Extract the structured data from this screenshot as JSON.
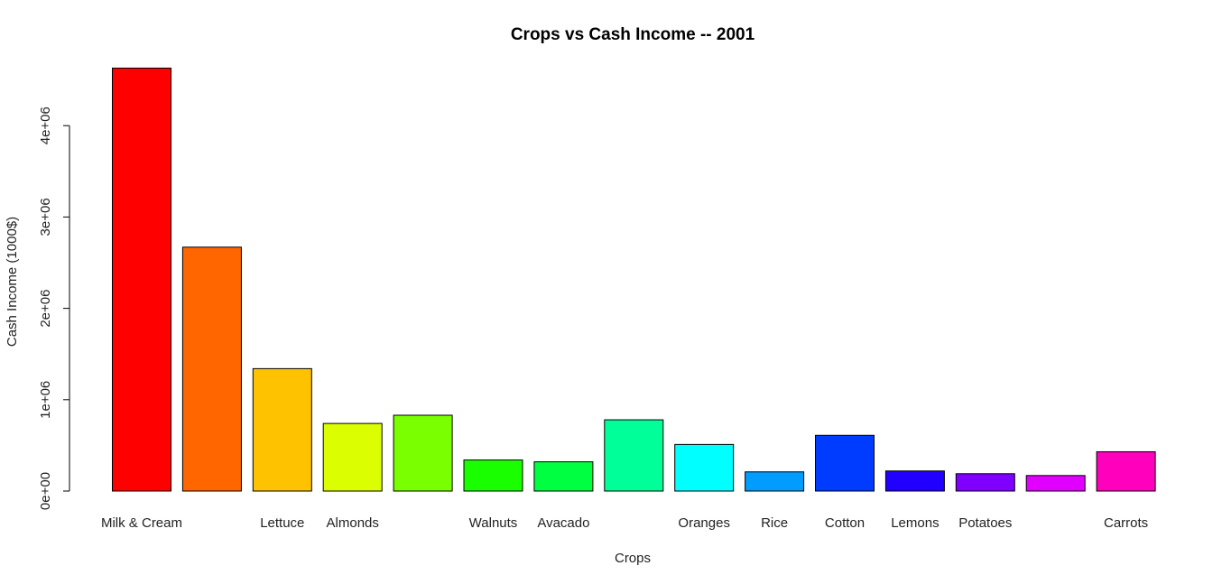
{
  "chart_data": {
    "type": "bar",
    "title": "Crops vs Cash Income -- 2001",
    "xlabel": "Crops",
    "ylabel": "Cash Income (1000$)",
    "ylim": [
      0,
      4600000
    ],
    "yticks": [
      0,
      1000000,
      2000000,
      3000000,
      4000000
    ],
    "ytick_labels": [
      "0e+00",
      "1e+06",
      "2e+06",
      "3e+06",
      "4e+06"
    ],
    "categories": [
      "Milk & Cream",
      "",
      "Lettuce",
      "Almonds",
      "",
      "Walnuts",
      "Avacado",
      "",
      "Oranges",
      "Rice",
      "Cotton",
      "Lemons",
      "Potatoes",
      "",
      "Carrots"
    ],
    "values": [
      4630000,
      2670000,
      1340000,
      740000,
      830000,
      340000,
      320000,
      780000,
      510000,
      210000,
      610000,
      220000,
      190000,
      170000,
      430000
    ],
    "colors": [
      "#FF0000",
      "#FF6600",
      "#FFC200",
      "#DBFF00",
      "#7AFF00",
      "#1AFF00",
      "#00FF40",
      "#00FF99",
      "#00FFFF",
      "#009DFF",
      "#003CFF",
      "#2200FF",
      "#8000FF",
      "#E100FF",
      "#FF00BD"
    ],
    "grid": false,
    "legend": "none"
  }
}
